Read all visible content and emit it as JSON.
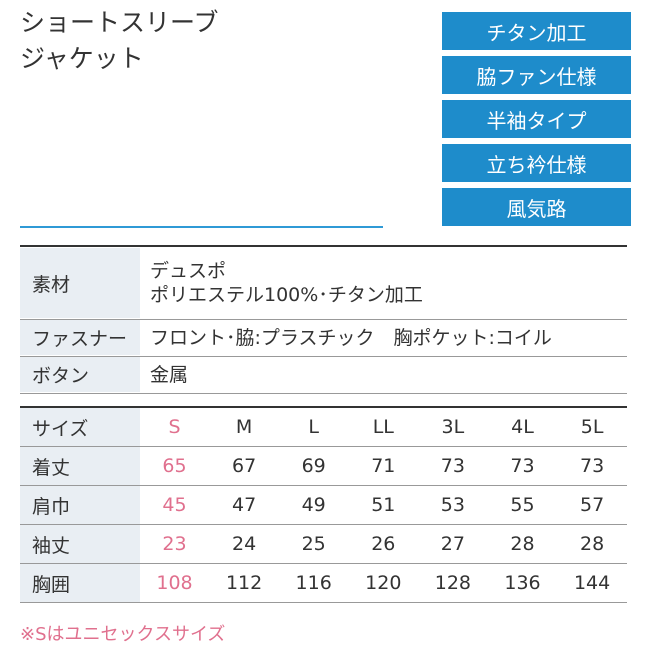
{
  "header": {
    "title": [
      "ショートスリーブ",
      "ジャケット"
    ]
  },
  "badges": [
    "チタン加工",
    "脇ファン仕様",
    "半袖タイプ",
    "立ち衿仕様",
    "風気路"
  ],
  "spec": [
    {
      "label": "素材",
      "lines": [
        "デュスポ",
        "ポリエステル100%･チタン加工"
      ]
    },
    {
      "label": "ファスナー",
      "lines": [
        "フロント･脇:プラスチック　胸ポケット:コイル"
      ]
    },
    {
      "label": "ボタン",
      "lines": [
        "金属"
      ]
    }
  ],
  "size_table": {
    "header": [
      "サイズ",
      "S",
      "M",
      "L",
      "LL",
      "3L",
      "4L",
      "5L"
    ],
    "rows": [
      [
        "着丈",
        65,
        67,
        69,
        71,
        73,
        73,
        73
      ],
      [
        "肩巾",
        45,
        47,
        49,
        51,
        53,
        55,
        57
      ],
      [
        "袖丈",
        23,
        24,
        25,
        26,
        27,
        28,
        28
      ],
      [
        "胸囲",
        108,
        112,
        116,
        120,
        128,
        136,
        144
      ]
    ]
  },
  "footnote": "※Sはユニセックスサイズ"
}
